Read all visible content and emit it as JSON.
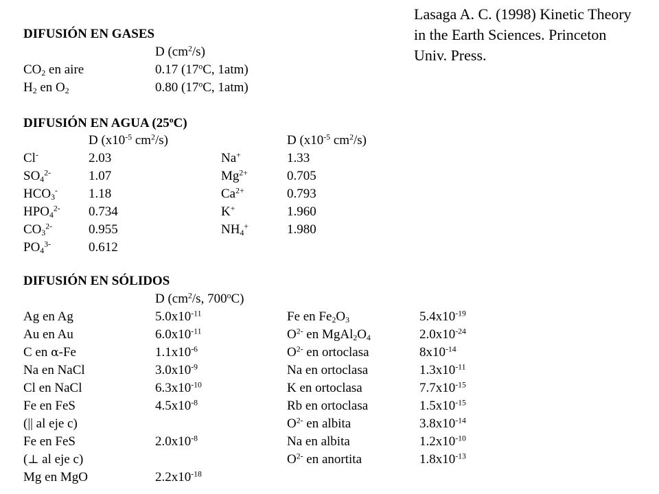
{
  "reference": {
    "lines": [
      "Lasaga A. C. (1998) Kinetic Theory",
      "in the Earth Sciences. Princeton",
      "Univ. Press."
    ]
  },
  "gases": {
    "heading": "DIFUSIÓN EN GASES",
    "unit_header": "D (cm<sup>2</sup>/s)",
    "rows": [
      {
        "species": "CO<sub>2</sub> en aire",
        "value": "0.17  (17<sup>o</sup>C, 1atm)"
      },
      {
        "species": "H<sub>2</sub> en O<sub>2</sub>",
        "value": "0.80  (17<sup>o</sup>C, 1atm)"
      }
    ]
  },
  "water": {
    "heading": "DIFUSIÓN EN AGUA (25<sup>o</sup>C)",
    "unit_header_left": "D (x10<sup>-5</sup> cm<sup>2</sup>/s)",
    "unit_header_right": "D (x10<sup>-5</sup> cm<sup>2</sup>/s)",
    "rows_left": [
      {
        "ion": "Cl<sup>-</sup>",
        "value": "2.03"
      },
      {
        "ion": "SO<sub>4</sub><sup>2-</sup>",
        "value": "1.07"
      },
      {
        "ion": "HCO<sub>3</sub><sup>-</sup>",
        "value": "1.18"
      },
      {
        "ion": "HPO<sub>4</sub><sup>2-</sup>",
        "value": "0.734"
      },
      {
        "ion": "CO<sub>3</sub><sup>2-</sup>",
        "value": "0.955"
      },
      {
        "ion": "PO<sub>4</sub><sup>3-</sup>",
        "value": "0.612"
      }
    ],
    "rows_right": [
      {
        "ion": "Na<sup>+</sup>",
        "value": "1.33"
      },
      {
        "ion": "Mg<sup>2+</sup>",
        "value": "0.705"
      },
      {
        "ion": "Ca<sup>2+</sup>",
        "value": "0.793"
      },
      {
        "ion": "K<sup>+</sup>",
        "value": "1.960"
      },
      {
        "ion": "NH<sub>4</sub><sup>+</sup>",
        "value": "1.980"
      }
    ]
  },
  "solids": {
    "heading": "DIFUSIÓN EN SÓLIDOS",
    "unit_header": "D (cm<sup>2</sup>/s, 700<sup>o</sup>C)",
    "rows_left": [
      {
        "species": "Ag en Ag",
        "value": "5.0x10<sup>-11</sup>"
      },
      {
        "species": "Au en Au",
        "value": "6.0x10<sup>-11</sup>"
      },
      {
        "species": "C en <span class=\"sym\">α</span>-Fe",
        "value": "1.1x10<sup>-6</sup>"
      },
      {
        "species": "Na en NaCl",
        "value": "3.0x10<sup>-9</sup>"
      },
      {
        "species": "Cl en NaCl",
        "value": "6.3x10<sup>-10</sup>"
      },
      {
        "species": "Fe en FeS",
        "value": "4.5x10<sup>-8</sup>"
      },
      {
        "species": " (|| al eje c)",
        "value": ""
      },
      {
        "species": "Fe en FeS",
        "value": "2.0x10<sup>-8</sup>"
      },
      {
        "species": "(<span class=\"sym\">⊥</span> al eje c)",
        "value": ""
      },
      {
        "species": "Mg en MgO",
        "value": "2.2x10<sup>-18</sup>"
      }
    ],
    "rows_right": [
      {
        "species": "Fe en Fe<sub>2</sub>O<sub>3</sub>",
        "value": "5.4x10<sup>-19</sup>"
      },
      {
        "species": "O<sup>2-</sup> en MgAl<sub>2</sub>O<sub>4</sub>",
        "value": "2.0x10<sup>-24</sup>"
      },
      {
        "species": "O<sup>2-</sup> en ortoclasa",
        "value": "8x10<sup>-14</sup>"
      },
      {
        "species": "Na en ortoclasa",
        "value": "1.3x10<sup>-11</sup>"
      },
      {
        "species": "K en ortoclasa",
        "value": "7.7x10<sup>-15</sup>"
      },
      {
        "species": "Rb en ortoclasa",
        "value": "1.5x10<sup>-15</sup>"
      },
      {
        "species": "O<sup>2-</sup> en albita",
        "value": "3.8x10<sup>-14</sup>"
      },
      {
        "species": "Na en albita",
        "value": "1.2x10<sup>-10</sup>"
      },
      {
        "species": "O<sup>2-</sup> en anortita",
        "value": "1.8x10<sup>-13</sup>"
      }
    ]
  }
}
